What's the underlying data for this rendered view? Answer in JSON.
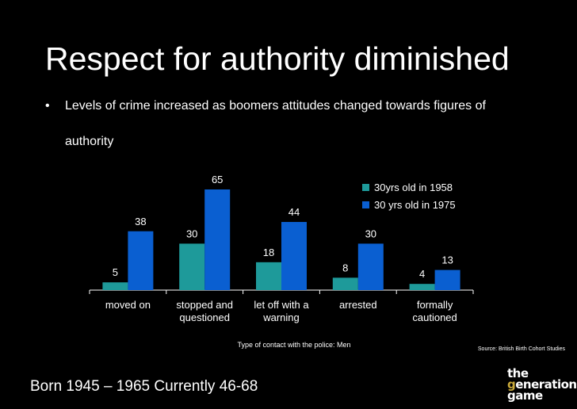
{
  "slide": {
    "title": "Respect for authority diminished",
    "bullet_marker": "•",
    "bullet_line1": "Levels of crime increased as boomers attitudes changed towards figures of",
    "bullet_line2": "authority",
    "footer": "Born 1945 – 1965  Currently 46-68",
    "logo_line1": "the",
    "logo_line2_initial": "g",
    "logo_line2_rest": "enerations",
    "logo_line3": "game"
  },
  "chart_data": {
    "type": "bar",
    "categories": [
      [
        "moved on"
      ],
      [
        "stopped and",
        "questioned"
      ],
      [
        "let off with a",
        "warning"
      ],
      [
        "arrested"
      ],
      [
        "formally",
        "cautioned"
      ]
    ],
    "series": [
      {
        "name": "30yrs old in 1958",
        "values": [
          5,
          30,
          18,
          8,
          4
        ],
        "color": "#1e9a9a"
      },
      {
        "name": "30 yrs old in 1975",
        "values": [
          38,
          65,
          44,
          30,
          13
        ],
        "color": "#0a5fd1"
      }
    ],
    "xlabel": "Type of contact with the police: Men",
    "source": "Source: British Birth Cohort Studies",
    "ylim": [
      0,
      65
    ],
    "grid": false,
    "legend_position": "top-right"
  }
}
